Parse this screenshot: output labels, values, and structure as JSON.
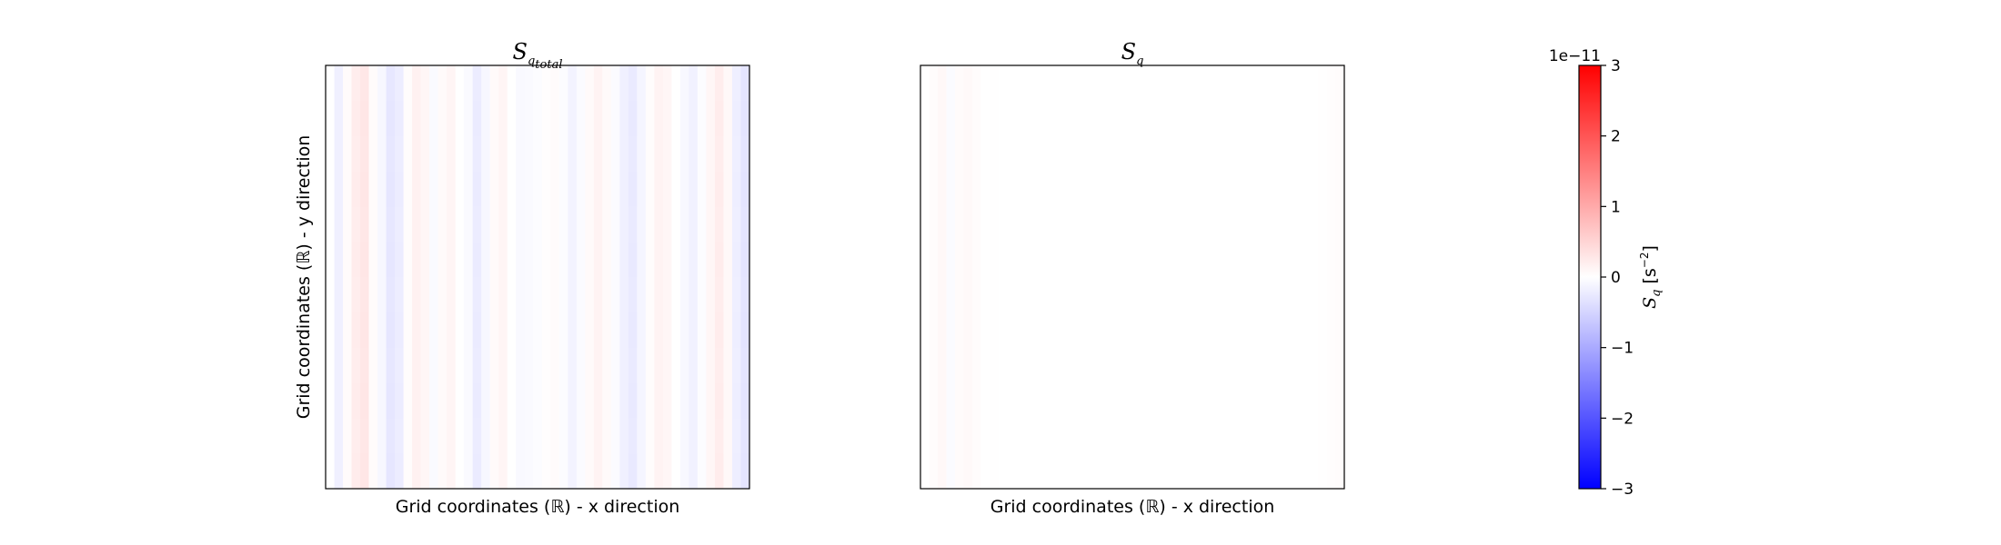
{
  "chart_data": [
    {
      "type": "heatmap",
      "title_base": "S",
      "title_sub": "q",
      "title_subsub": "total",
      "xlabel": "Grid coordinates (ℝ) - x direction",
      "ylabel": "Grid coordinates (ℝ) - y direction",
      "column_values": [
        0.0,
        -0.18,
        0.05,
        0.22,
        0.3,
        0.05,
        -0.1,
        -0.3,
        -0.22,
        0.04,
        0.17,
        0.1,
        -0.06,
        0.06,
        0.12,
        0.0,
        -0.06,
        -0.24,
        -0.1,
        0.06,
        0.12,
        0.0,
        -0.07,
        -0.06,
        -0.04,
        0.02,
        0.05,
        -0.04,
        -0.14,
        -0.05,
        0.06,
        0.14,
        0.06,
        -0.05,
        -0.18,
        -0.26,
        -0.12,
        0.04,
        0.14,
        0.1,
        0.0,
        -0.08,
        -0.16,
        -0.04,
        0.1,
        0.22,
        0.08,
        -0.2,
        -0.32
      ]
    },
    {
      "type": "heatmap",
      "title_base": "S",
      "title_sub": "q",
      "xlabel": "Grid coordinates (ℝ) - x direction",
      "column_values": [
        0.0,
        0.04,
        0.08,
        -0.05,
        0.05,
        0.07,
        0.03,
        0.0,
        0.01,
        0.0,
        0.0,
        0.0,
        0.0,
        0.0,
        0.0,
        0.0,
        0.0,
        0.0,
        0.0,
        0.0,
        0.0,
        0.0,
        0.0,
        0.0,
        0.0,
        0.0,
        0.0,
        0.0,
        0.0,
        0.0,
        0.0,
        0.0,
        0.0,
        0.0,
        0.0,
        0.0,
        0.0,
        0.0,
        0.0,
        0.0,
        0.0,
        0.0,
        0.0,
        0.0,
        0.0,
        0.0,
        0.01,
        0.02,
        0.03
      ]
    }
  ],
  "colorbar": {
    "scale_label": "1e−11",
    "label_base": "S",
    "label_sub": "q",
    "label_units": "[s",
    "label_exp": "−2",
    "label_close": "]",
    "min": -3,
    "max": 3,
    "ticks": [
      {
        "value": 3,
        "label": "3"
      },
      {
        "value": 2,
        "label": "2"
      },
      {
        "value": 1,
        "label": "1"
      },
      {
        "value": 0,
        "label": "0"
      },
      {
        "value": -1,
        "label": "−1"
      },
      {
        "value": -2,
        "label": "−2"
      },
      {
        "value": -3,
        "label": "−3"
      }
    ],
    "colormap": "bwr",
    "colors": {
      "low": "#0000ff",
      "mid": "#ffffff",
      "high": "#ff0000"
    }
  }
}
